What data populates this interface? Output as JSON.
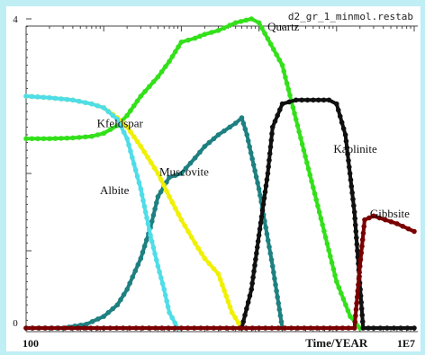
{
  "chart_data": {
    "type": "line",
    "title": "d2_gr_1_minmol.restab",
    "xlabel": "Time/YEAR",
    "x_scale": "log",
    "xlim": [
      100,
      10000000
    ],
    "x_tick_labels": {
      "left": "100",
      "right": "1E7"
    },
    "ylim": [
      0,
      4
    ],
    "y_tick_labels": {
      "top": "4",
      "bottom": "0"
    },
    "grid": false,
    "series": [
      {
        "name": "Quartz",
        "color": "#33e01a",
        "x": [
          100,
          200,
          400,
          700,
          1000,
          1500,
          2000,
          3000,
          5000,
          7000,
          10000,
          15000,
          20000,
          30000,
          50000,
          80000,
          100000,
          200000,
          300000,
          600000,
          1000000,
          1500000,
          2000000
        ],
        "y": [
          2.45,
          2.45,
          2.46,
          2.48,
          2.52,
          2.62,
          2.75,
          3.0,
          3.25,
          3.45,
          3.7,
          3.75,
          3.8,
          3.85,
          3.95,
          4.0,
          3.95,
          3.4,
          2.7,
          1.5,
          0.6,
          0.15,
          0.0
        ]
      },
      {
        "name": "Kfeldspar",
        "color": "#f0f000",
        "x": [
          100,
          200,
          400,
          700,
          1000,
          1500,
          2000,
          3000,
          5000,
          7000,
          10000,
          15000,
          20000,
          30000,
          45000,
          60000
        ],
        "y": [
          3.0,
          2.98,
          2.95,
          2.9,
          2.85,
          2.72,
          2.6,
          2.35,
          2.0,
          1.7,
          1.4,
          1.1,
          0.9,
          0.7,
          0.2,
          0.0
        ]
      },
      {
        "name": "Albite",
        "color": "#4fdde8",
        "x": [
          100,
          200,
          400,
          700,
          1000,
          1500,
          2000,
          3000,
          4000,
          5000,
          6000,
          7000,
          9000
        ],
        "y": [
          3.0,
          2.98,
          2.95,
          2.9,
          2.85,
          2.7,
          2.45,
          1.8,
          1.2,
          0.8,
          0.5,
          0.2,
          0.0
        ]
      },
      {
        "name": "Muscovite",
        "color": "#1e8080",
        "x": [
          100,
          300,
          600,
          1000,
          1500,
          2000,
          3000,
          4000,
          5000,
          7000,
          10000,
          15000,
          20000,
          30000,
          50000,
          60000,
          70000,
          100000,
          150000,
          200000
        ],
        "y": [
          0.0,
          0.0,
          0.05,
          0.15,
          0.3,
          0.5,
          0.9,
          1.3,
          1.7,
          1.95,
          2.0,
          2.2,
          2.35,
          2.5,
          2.65,
          2.72,
          2.5,
          1.8,
          0.8,
          0.0
        ]
      },
      {
        "name": "Kaolinite",
        "color": "#101010",
        "x": [
          60000,
          80000,
          100000,
          130000,
          150000,
          200000,
          300000,
          500000,
          800000,
          1000000,
          1300000,
          1700000,
          2200000,
          3000000,
          10000000
        ],
        "y": [
          0.0,
          0.5,
          1.2,
          2.0,
          2.6,
          2.9,
          2.95,
          2.95,
          2.95,
          2.9,
          2.5,
          1.5,
          0.0,
          0.0,
          0.0
        ]
      },
      {
        "name": "Gibbsite",
        "color": "#7a0000",
        "x": [
          100,
          1000,
          10000,
          100000,
          1000000,
          1700000,
          2000000,
          2300000,
          3000000,
          6000000,
          10000000
        ],
        "y": [
          0.0,
          0.0,
          0.0,
          0.0,
          0.0,
          0.0,
          0.8,
          1.4,
          1.45,
          1.35,
          1.25
        ]
      }
    ]
  }
}
